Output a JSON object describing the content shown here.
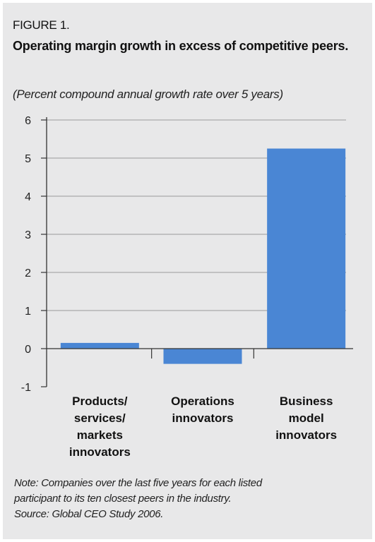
{
  "figure_label": "FIGURE 1.",
  "chart_data": {
    "type": "bar",
    "title": "Operating margin growth in excess of competitive peers.",
    "subtitle": "(Percent compound annual growth rate over 5 years)",
    "categories": [
      [
        "Products/",
        "services/",
        "markets",
        "innovators"
      ],
      [
        "Operations",
        "innovators"
      ],
      [
        "Business",
        "model",
        "innovators"
      ]
    ],
    "values": [
      0.15,
      -0.4,
      5.25
    ],
    "ylim": [
      -1,
      6
    ],
    "yticks": [
      "6",
      "5",
      "4",
      "3",
      "2",
      "1",
      "0",
      "-1"
    ],
    "grid": true,
    "bar_color": "#4a86d4",
    "grid_color": "#9a9a9a"
  },
  "note_lines": [
    "Note: Companies over the last five years for each listed",
    "participant to its ten closest peers in the industry.",
    "Source: Global CEO Study 2006."
  ]
}
